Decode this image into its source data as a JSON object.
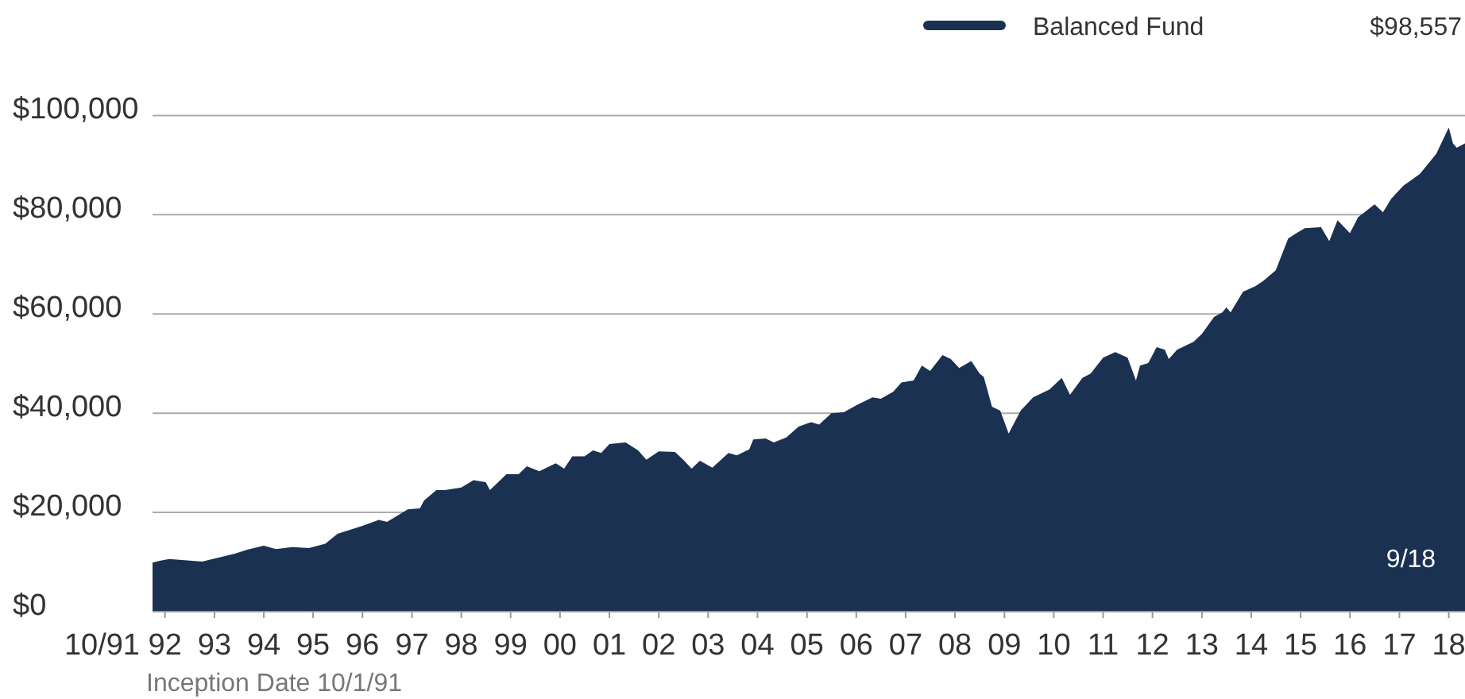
{
  "chart_data": {
    "type": "area",
    "legend": "top right",
    "grid": "y",
    "xlim": [
      "1991-10",
      "2018-05"
    ],
    "xticks": [
      {
        "value": "1992-01",
        "label": "92"
      },
      {
        "value": "1993-01",
        "label": "93"
      },
      {
        "value": "1994-01",
        "label": "94"
      },
      {
        "value": "1995-01",
        "label": "95"
      },
      {
        "value": "1996-01",
        "label": "96"
      },
      {
        "value": "1997-01",
        "label": "97"
      },
      {
        "value": "1998-01",
        "label": "98"
      },
      {
        "value": "1999-01",
        "label": "99"
      },
      {
        "value": "2000-01",
        "label": "00"
      },
      {
        "value": "2001-01",
        "label": "01"
      },
      {
        "value": "2002-01",
        "label": "02"
      },
      {
        "value": "2003-01",
        "label": "03"
      },
      {
        "value": "2004-01",
        "label": "04"
      },
      {
        "value": "2005-01",
        "label": "05"
      },
      {
        "value": "2006-01",
        "label": "06"
      },
      {
        "value": "2007-01",
        "label": "07"
      },
      {
        "value": "2008-01",
        "label": "08"
      },
      {
        "value": "2009-01",
        "label": "09"
      },
      {
        "value": "2010-01",
        "label": "10"
      },
      {
        "value": "2011-01",
        "label": "11"
      },
      {
        "value": "2012-01",
        "label": "12"
      },
      {
        "value": "2013-01",
        "label": "13"
      },
      {
        "value": "2014-01",
        "label": "14"
      },
      {
        "value": "2015-01",
        "label": "15"
      },
      {
        "value": "2016-01",
        "label": "16"
      },
      {
        "value": "2017-01",
        "label": "17"
      },
      {
        "value": "2018-01",
        "label": "18"
      }
    ],
    "ylim": [
      0,
      100000
    ],
    "yticks": [
      {
        "value": 0,
        "label": "$0"
      },
      {
        "value": 20000,
        "label": "$20,000"
      },
      {
        "value": 40000,
        "label": "$40,000"
      },
      {
        "value": 60000,
        "label": "$60,000"
      },
      {
        "value": 80000,
        "label": "$80,000"
      },
      {
        "value": 100000,
        "label": "$100,000"
      }
    ],
    "annotations": [
      "10/91",
      "Inception Date 10/1/91",
      "9/18",
      "$98,557"
    ],
    "series": [
      {
        "name": "Balanced Fund",
        "color": "#1b3152",
        "x": [
          "1991-10",
          "1991-12",
          "1992-02",
          "1992-07",
          "1992-10",
          "1993-01",
          "1993-06",
          "1993-09",
          "1994-01",
          "1994-04",
          "1994-08",
          "1994-12",
          "1995-04",
          "1995-07",
          "1996-01",
          "1996-05",
          "1996-07",
          "1996-12",
          "1997-03",
          "1997-04",
          "1997-07",
          "1997-09",
          "1998-01",
          "1998-04",
          "1998-07",
          "1998-08",
          "1998-12",
          "1999-03",
          "1999-05",
          "1999-08",
          "1999-12",
          "2000-02",
          "2000-04",
          "2000-07",
          "2000-09",
          "2000-11",
          "2001-01",
          "2001-05",
          "2001-08",
          "2001-10",
          "2002-01",
          "2002-05",
          "2002-07",
          "2002-09",
          "2002-11",
          "2003-02",
          "2003-06",
          "2003-08",
          "2003-11",
          "2003-12",
          "2004-03",
          "2004-05",
          "2004-08",
          "2004-11",
          "2005-02",
          "2005-04",
          "2005-07",
          "2005-10",
          "2006-01",
          "2006-05",
          "2006-07",
          "2006-10",
          "2006-12",
          "2007-03",
          "2007-05",
          "2007-07",
          "2007-10",
          "2007-12",
          "2008-02",
          "2008-05",
          "2008-07",
          "2008-08",
          "2008-10",
          "2008-12",
          "2009-02",
          "2009-05",
          "2009-08",
          "2009-12",
          "2010-03",
          "2010-05",
          "2010-08",
          "2010-10",
          "2011-01",
          "2011-04",
          "2011-07",
          "2011-09",
          "2011-10",
          "2011-12",
          "2012-02",
          "2012-04",
          "2012-05",
          "2012-07",
          "2012-11",
          "2013-01",
          "2013-04",
          "2013-06",
          "2013-07",
          "2013-08",
          "2013-11",
          "2014-02",
          "2014-04",
          "2014-07",
          "2014-10",
          "2014-12",
          "2015-02",
          "2015-06",
          "2015-08",
          "2015-10",
          "2016-01",
          "2016-03",
          "2016-07",
          "2016-09",
          "2016-11",
          "2017-02",
          "2017-06",
          "2017-10",
          "2018-01",
          "2018-02",
          "2018-03",
          "2018-05"
        ],
        "values": [
          9900,
          10300,
          10600,
          10300,
          10100,
          10700,
          11700,
          12500,
          13300,
          12600,
          13000,
          12800,
          13700,
          15700,
          17300,
          18500,
          18100,
          20600,
          20800,
          22400,
          24500,
          24500,
          25000,
          26500,
          26100,
          24500,
          27700,
          27700,
          29300,
          28300,
          29900,
          28800,
          31300,
          31300,
          32500,
          32000,
          33800,
          34100,
          32500,
          30600,
          32300,
          32200,
          30600,
          28800,
          30400,
          29000,
          32000,
          31500,
          32700,
          34700,
          34900,
          34100,
          35100,
          37300,
          38200,
          37700,
          40000,
          40200,
          41600,
          43200,
          42900,
          44300,
          46200,
          46600,
          49600,
          48500,
          51700,
          50900,
          49100,
          50500,
          48000,
          47300,
          41300,
          40500,
          35900,
          40500,
          43200,
          44800,
          47100,
          43700,
          47100,
          48000,
          51200,
          52300,
          51200,
          46600,
          49600,
          50100,
          53300,
          52800,
          50900,
          52800,
          54400,
          56000,
          59400,
          60300,
          61300,
          60300,
          64500,
          65600,
          66700,
          68800,
          75200,
          76300,
          77300,
          77500,
          74700,
          78900,
          76300,
          79500,
          82100,
          80500,
          83200,
          85900,
          88200,
          92300,
          97600,
          94400,
          93500,
          94400
        ]
      }
    ]
  }
}
